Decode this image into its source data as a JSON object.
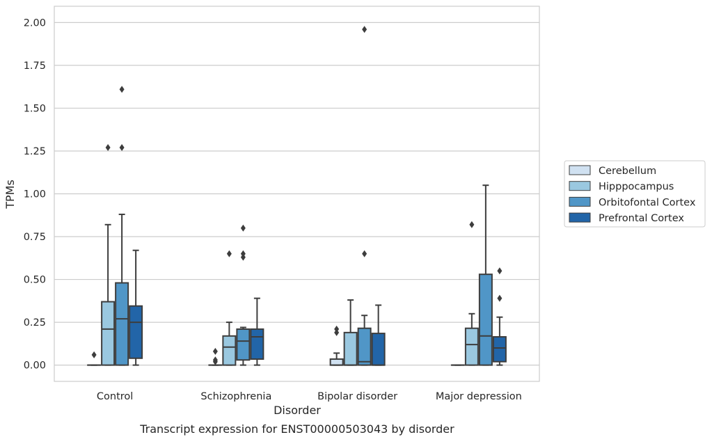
{
  "chart_data": {
    "type": "box",
    "title": "",
    "caption": "Transcript expression for ENST00000503043 by disorder",
    "xlabel": "Disorder",
    "ylabel": "TPMs",
    "ylim": [
      -0.095,
      2.095
    ],
    "yticks": [
      0.0,
      0.25,
      0.5,
      0.75,
      1.0,
      1.25,
      1.5,
      1.75,
      2.0
    ],
    "ytick_labels": [
      "0.00",
      "0.25",
      "0.50",
      "0.75",
      "1.00",
      "1.25",
      "1.50",
      "1.75",
      "2.00"
    ],
    "grid": "horizontal",
    "legend_position": "right",
    "categories": [
      "Control",
      "Schizophrenia",
      "Bipolar disorder",
      "Major depression"
    ],
    "series": [
      {
        "name": "Cerebellum",
        "color": "#d0e1f1",
        "boxes": [
          {
            "lower_whisker": 0.0,
            "q1": 0.0,
            "median": 0.0,
            "q3": 0.0,
            "upper_whisker": 0.0,
            "outliers": [
              0.06
            ]
          },
          {
            "lower_whisker": 0.0,
            "q1": 0.0,
            "median": 0.0,
            "q3": 0.0,
            "upper_whisker": 0.0,
            "outliers": [
              0.02,
              0.03,
              0.08
            ]
          },
          {
            "lower_whisker": 0.0,
            "q1": 0.0,
            "median": 0.0,
            "q3": 0.035,
            "upper_whisker": 0.07,
            "outliers": [
              0.19,
              0.21
            ]
          },
          {
            "lower_whisker": 0.0,
            "q1": 0.0,
            "median": 0.0,
            "q3": 0.0,
            "upper_whisker": 0.0,
            "outliers": []
          }
        ]
      },
      {
        "name": "Hipppocampus",
        "color": "#9ac8e0",
        "boxes": [
          {
            "lower_whisker": 0.0,
            "q1": 0.0,
            "median": 0.21,
            "q3": 0.37,
            "upper_whisker": 0.82,
            "outliers": [
              1.27
            ]
          },
          {
            "lower_whisker": 0.0,
            "q1": 0.0,
            "median": 0.105,
            "q3": 0.17,
            "upper_whisker": 0.25,
            "outliers": [
              0.65
            ]
          },
          {
            "lower_whisker": 0.0,
            "q1": 0.0,
            "median": 0.0,
            "q3": 0.19,
            "upper_whisker": 0.38,
            "outliers": []
          },
          {
            "lower_whisker": 0.0,
            "q1": 0.0,
            "median": 0.12,
            "q3": 0.215,
            "upper_whisker": 0.3,
            "outliers": [
              0.82
            ]
          }
        ]
      },
      {
        "name": "Orbitofontal Cortex",
        "color": "#5096c7",
        "boxes": [
          {
            "lower_whisker": 0.0,
            "q1": 0.0,
            "median": 0.27,
            "q3": 0.48,
            "upper_whisker": 0.88,
            "outliers": [
              1.27,
              1.61
            ]
          },
          {
            "lower_whisker": 0.0,
            "q1": 0.03,
            "median": 0.14,
            "q3": 0.21,
            "upper_whisker": 0.22,
            "outliers": [
              0.63,
              0.65,
              0.8
            ]
          },
          {
            "lower_whisker": 0.0,
            "q1": 0.0,
            "median": 0.02,
            "q3": 0.215,
            "upper_whisker": 0.29,
            "outliers": [
              0.65,
              1.96
            ]
          },
          {
            "lower_whisker": 0.0,
            "q1": 0.0,
            "median": 0.17,
            "q3": 0.53,
            "upper_whisker": 1.05,
            "outliers": []
          }
        ]
      },
      {
        "name": "Prefrontal Cortex",
        "color": "#2265a8",
        "boxes": [
          {
            "lower_whisker": 0.0,
            "q1": 0.04,
            "median": 0.25,
            "q3": 0.345,
            "upper_whisker": 0.67,
            "outliers": []
          },
          {
            "lower_whisker": 0.0,
            "q1": 0.035,
            "median": 0.165,
            "q3": 0.21,
            "upper_whisker": 0.39,
            "outliers": []
          },
          {
            "lower_whisker": 0.0,
            "q1": 0.0,
            "median": 0.0,
            "q3": 0.185,
            "upper_whisker": 0.35,
            "outliers": []
          },
          {
            "lower_whisker": 0.0,
            "q1": 0.02,
            "median": 0.1,
            "q3": 0.165,
            "upper_whisker": 0.28,
            "outliers": [
              0.39,
              0.55
            ]
          }
        ]
      }
    ]
  }
}
